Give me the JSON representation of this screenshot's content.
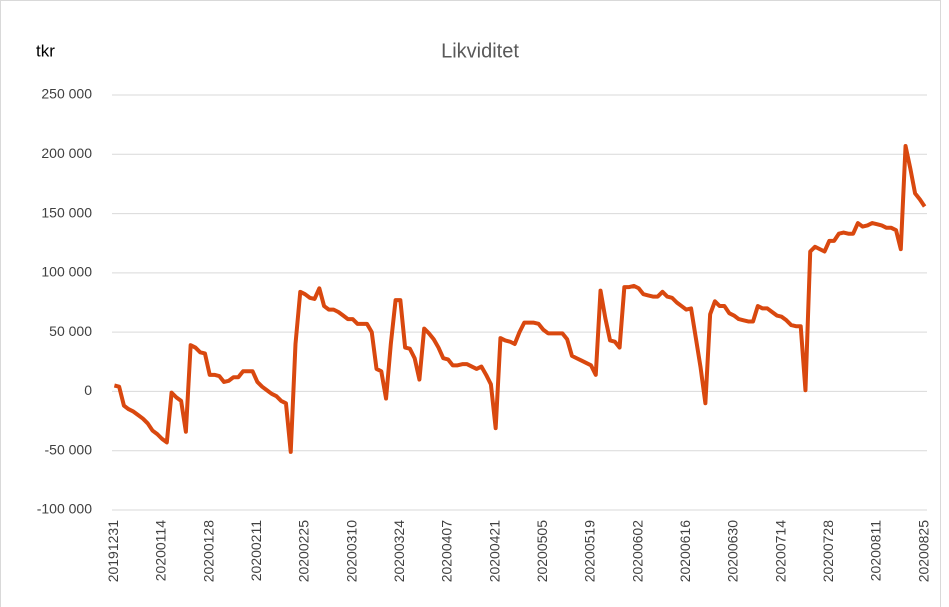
{
  "chart_data": {
    "type": "line",
    "title": "Likviditet",
    "y_label": "tkr",
    "categories": [
      "20191231",
      null,
      null,
      null,
      null,
      null,
      null,
      null,
      null,
      null,
      "20200114",
      null,
      null,
      null,
      null,
      null,
      null,
      null,
      null,
      null,
      "20200128",
      null,
      null,
      null,
      null,
      null,
      null,
      null,
      null,
      null,
      "20200211",
      null,
      null,
      null,
      null,
      null,
      null,
      null,
      null,
      null,
      "20200225",
      null,
      null,
      null,
      null,
      null,
      null,
      null,
      null,
      null,
      "20200310",
      null,
      null,
      null,
      null,
      null,
      null,
      null,
      null,
      null,
      "20200324",
      null,
      null,
      null,
      null,
      null,
      null,
      null,
      null,
      null,
      "20200407",
      null,
      null,
      null,
      null,
      null,
      null,
      null,
      null,
      null,
      "20200421",
      null,
      null,
      null,
      null,
      null,
      null,
      null,
      null,
      null,
      "20200505",
      null,
      null,
      null,
      null,
      null,
      null,
      null,
      null,
      null,
      "20200519",
      null,
      null,
      null,
      null,
      null,
      null,
      null,
      null,
      null,
      "20200602",
      null,
      null,
      null,
      null,
      null,
      null,
      null,
      null,
      null,
      "20200616",
      null,
      null,
      null,
      null,
      null,
      null,
      null,
      null,
      null,
      "20200630",
      null,
      null,
      null,
      null,
      null,
      null,
      null,
      null,
      null,
      "20200714",
      null,
      null,
      null,
      null,
      null,
      null,
      null,
      null,
      null,
      "20200728",
      null,
      null,
      null,
      null,
      null,
      null,
      null,
      null,
      null,
      "20200811",
      null,
      null,
      null,
      null,
      null,
      null,
      null,
      null,
      null,
      "20200825"
    ],
    "series": [
      {
        "name": "Likviditet",
        "color": "#d9480f",
        "values": [
          5000,
          4000,
          -12000,
          -15000,
          -17000,
          -20000,
          -23000,
          -27000,
          -33000,
          -36000,
          -40000,
          -43000,
          -1000,
          -5000,
          -8000,
          -34000,
          39000,
          37000,
          33000,
          32000,
          14000,
          14000,
          13000,
          8000,
          9000,
          12000,
          12000,
          17000,
          17000,
          17000,
          8000,
          4000,
          1000,
          -2000,
          -4000,
          -8000,
          -10000,
          -51000,
          40000,
          84000,
          82000,
          79000,
          78000,
          87000,
          72000,
          69000,
          69000,
          67000,
          64000,
          61000,
          61000,
          57000,
          57000,
          57000,
          50000,
          19000,
          17000,
          -6000,
          40000,
          77000,
          77000,
          37000,
          36000,
          28000,
          10000,
          53000,
          49000,
          44000,
          37000,
          28000,
          27000,
          22000,
          22000,
          23000,
          23000,
          21000,
          19000,
          21000,
          14000,
          6000,
          -31000,
          45000,
          43000,
          42000,
          40000,
          50000,
          58000,
          58000,
          58000,
          57000,
          52000,
          49000,
          49000,
          49000,
          49000,
          44000,
          30000,
          28000,
          26000,
          24000,
          22000,
          14000,
          85000,
          62000,
          43000,
          42000,
          37000,
          88000,
          88000,
          89000,
          87000,
          82000,
          81000,
          80000,
          80000,
          84000,
          80000,
          79000,
          75000,
          72000,
          69000,
          70000,
          45000,
          20000,
          -10000,
          65000,
          76000,
          72000,
          72000,
          66000,
          64000,
          61000,
          60000,
          59000,
          59000,
          72000,
          70000,
          70000,
          67000,
          64000,
          63000,
          60000,
          56000,
          55000,
          55000,
          1000,
          118000,
          122000,
          120000,
          118000,
          127000,
          127000,
          133000,
          134000,
          133000,
          133000,
          142000,
          139000,
          140000,
          142000,
          141000,
          140000,
          138000,
          138000,
          136000,
          120000,
          207000,
          188000,
          167000,
          162000,
          156000
        ]
      }
    ],
    "ylim": [
      -100000,
      250000
    ],
    "yticks": [
      {
        "value": -100000,
        "label": "-100 000"
      },
      {
        "value": -50000,
        "label": "-50 000"
      },
      0,
      {
        "value": 50000,
        "label": "50 000"
      },
      {
        "value": 100000,
        "label": "100 000"
      },
      {
        "value": 150000,
        "label": "150 000"
      },
      {
        "value": 200000,
        "label": "200 000"
      },
      {
        "value": 250000,
        "label": "250 000"
      }
    ],
    "grid": true
  }
}
